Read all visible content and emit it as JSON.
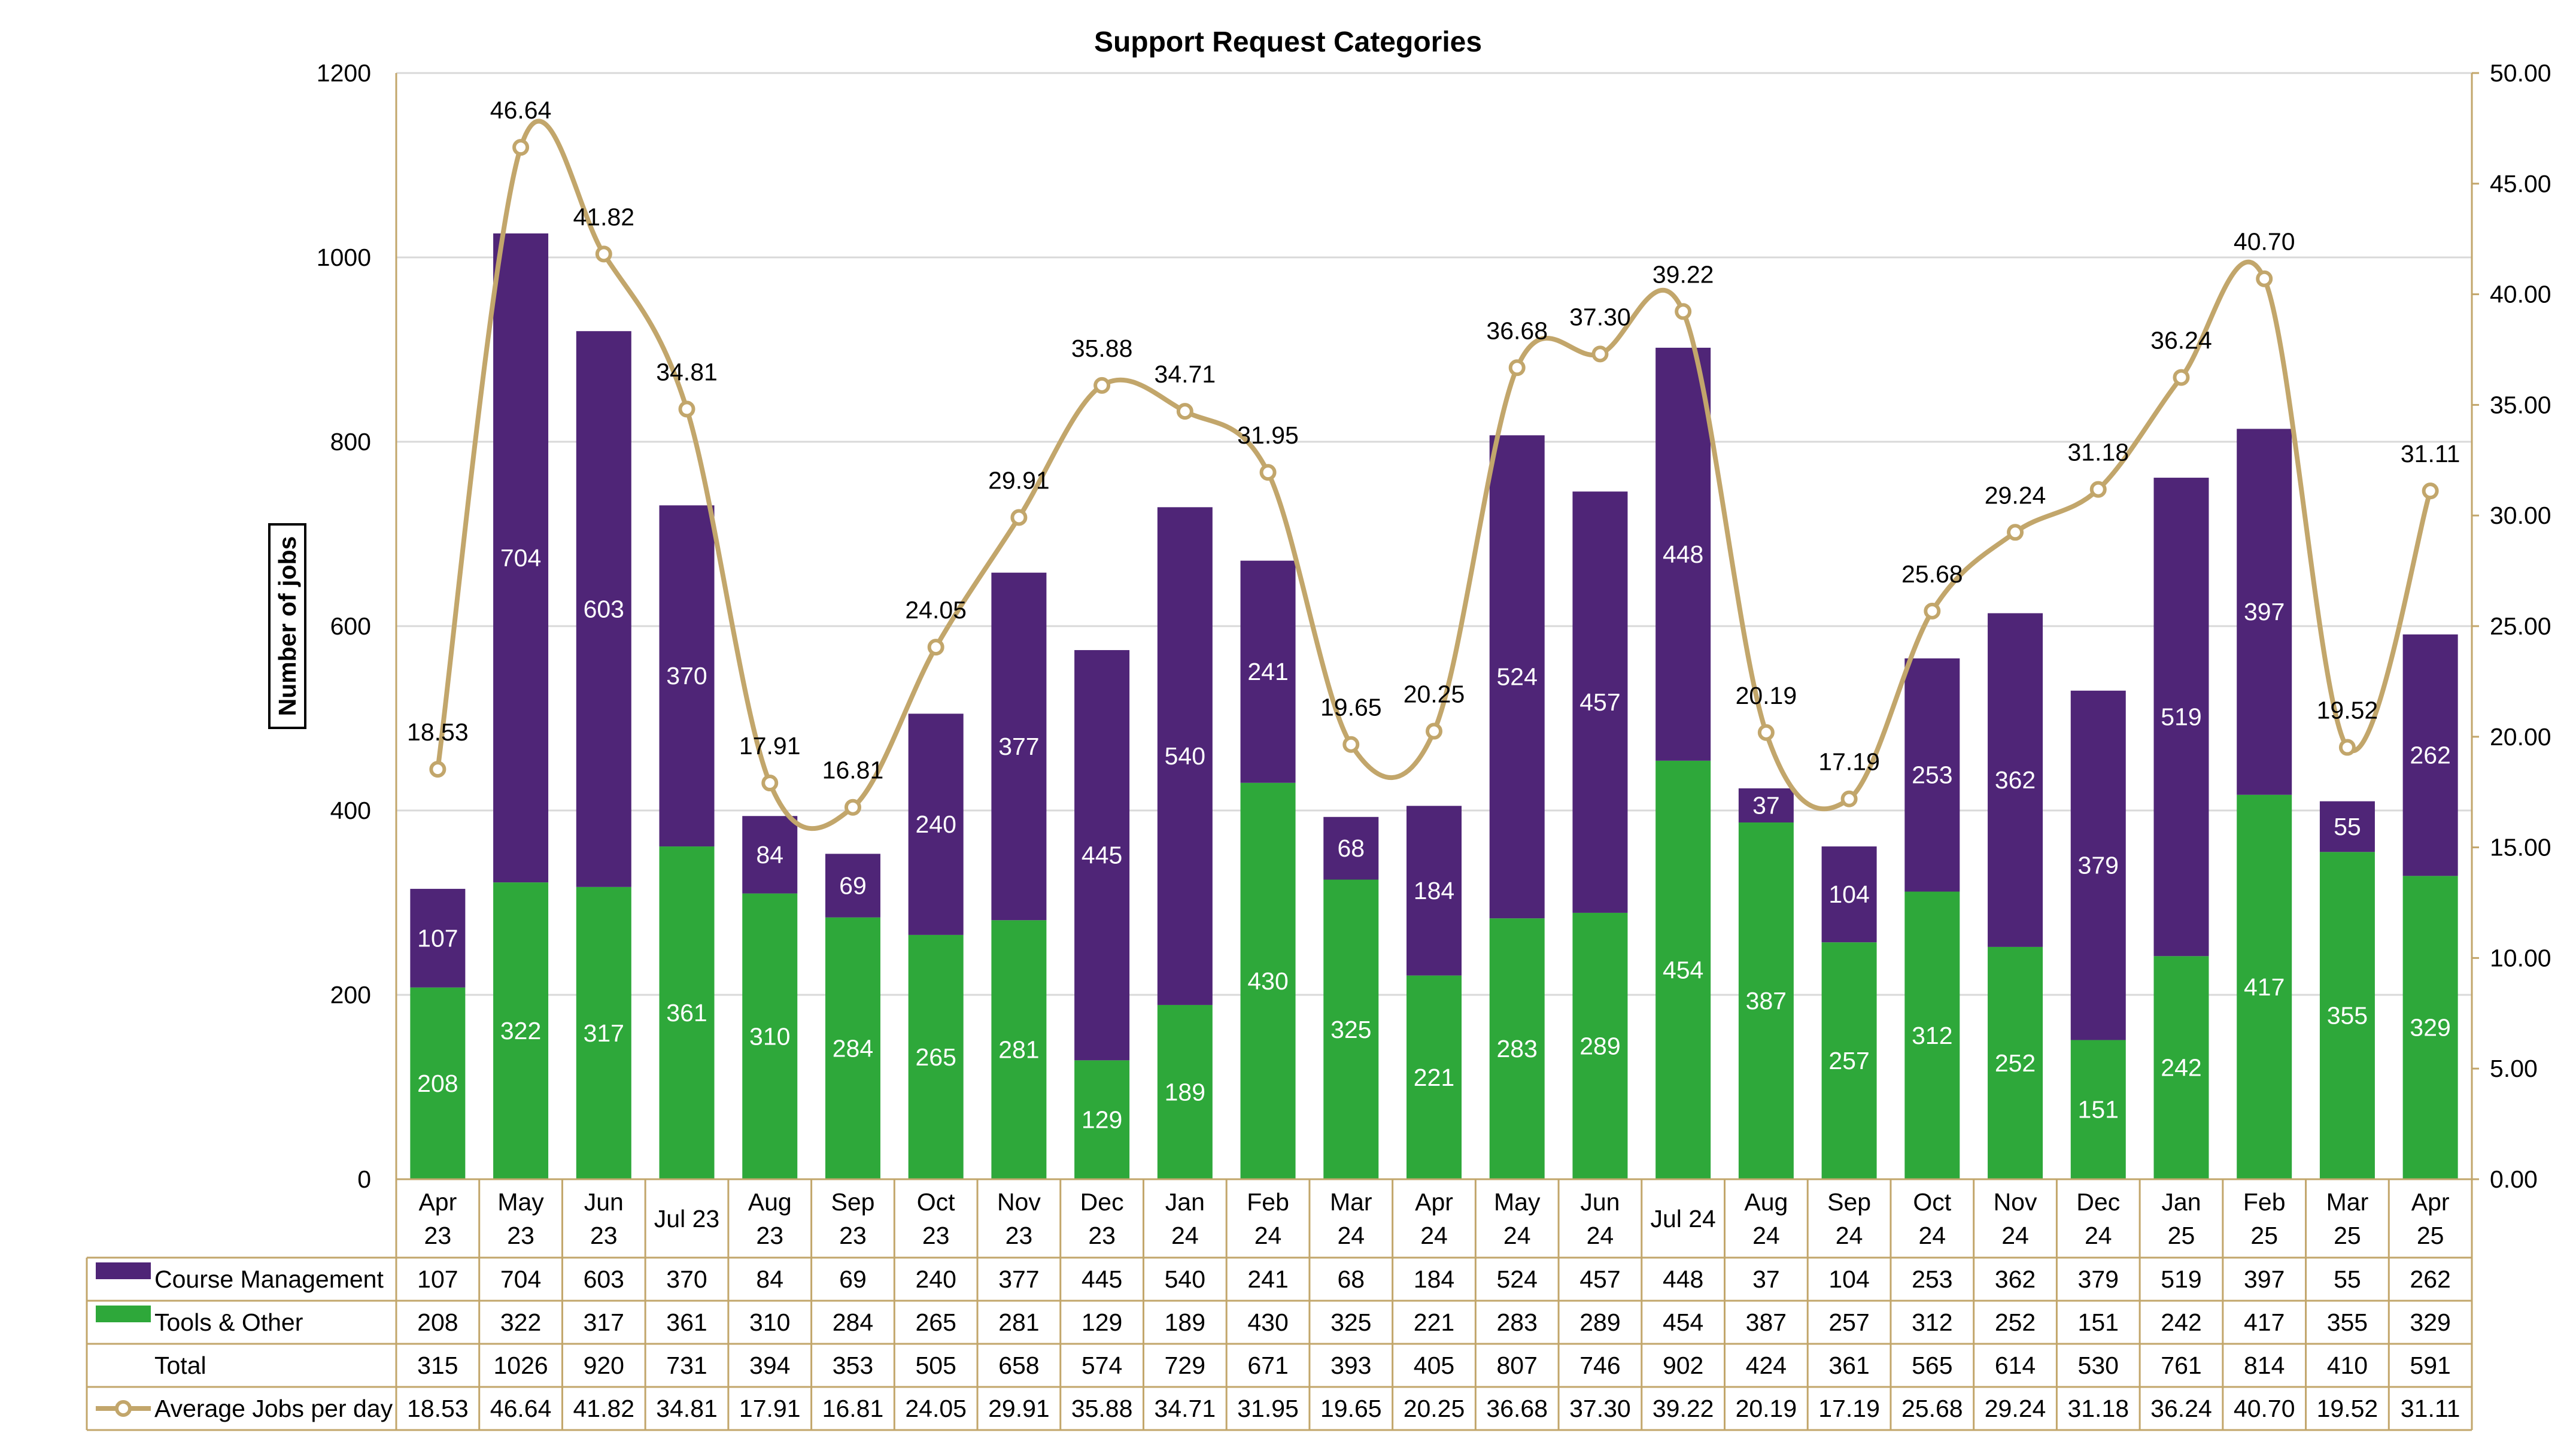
{
  "chart_data": {
    "type": "bar",
    "stacked": true,
    "title": "Support Request Categories",
    "ylabel": "Number of jobs",
    "xlabel": "",
    "ylim": [
      0,
      1200
    ],
    "y_ticks": [
      "0",
      "200",
      "400",
      "600",
      "800",
      "1000",
      "1200"
    ],
    "y2lim": [
      0,
      50
    ],
    "y2_ticks": [
      "0.00",
      "5.00",
      "10.00",
      "15.00",
      "20.00",
      "25.00",
      "30.00",
      "35.00",
      "40.00",
      "45.00",
      "50.00"
    ],
    "grid": true,
    "categories": [
      [
        "Apr",
        "23"
      ],
      [
        "May",
        "23"
      ],
      [
        "Jun",
        "23"
      ],
      [
        "Jul 23"
      ],
      [
        "Aug",
        "23"
      ],
      [
        "Sep",
        "23"
      ],
      [
        "Oct",
        "23"
      ],
      [
        "Nov",
        "23"
      ],
      [
        "Dec",
        "23"
      ],
      [
        "Jan",
        "24"
      ],
      [
        "Feb",
        "24"
      ],
      [
        "Mar",
        "24"
      ],
      [
        "Apr",
        "24"
      ],
      [
        "May",
        "24"
      ],
      [
        "Jun",
        "24"
      ],
      [
        "Jul 24"
      ],
      [
        "Aug",
        "24"
      ],
      [
        "Sep",
        "24"
      ],
      [
        "Oct",
        "24"
      ],
      [
        "Nov",
        "24"
      ],
      [
        "Dec",
        "24"
      ],
      [
        "Jan",
        "25"
      ],
      [
        "Feb",
        "25"
      ],
      [
        "Mar",
        "25"
      ],
      [
        "Apr",
        "25"
      ]
    ],
    "series": [
      {
        "name": "Course Management",
        "type": "bar",
        "color": "#4f2577",
        "values": [
          107,
          704,
          603,
          370,
          84,
          69,
          240,
          377,
          445,
          540,
          241,
          68,
          184,
          524,
          457,
          448,
          37,
          104,
          253,
          362,
          379,
          519,
          397,
          55,
          262
        ]
      },
      {
        "name": "Tools & Other",
        "type": "bar",
        "color": "#2ea83a",
        "values": [
          208,
          322,
          317,
          361,
          310,
          284,
          265,
          281,
          129,
          189,
          430,
          325,
          221,
          283,
          289,
          454,
          387,
          257,
          312,
          252,
          151,
          242,
          417,
          355,
          329
        ]
      },
      {
        "name": "Total",
        "type": "table-only",
        "values": [
          315,
          1026,
          920,
          731,
          394,
          353,
          505,
          658,
          574,
          729,
          671,
          393,
          405,
          807,
          746,
          902,
          424,
          361,
          565,
          614,
          530,
          761,
          814,
          410,
          591
        ]
      },
      {
        "name": "Average Jobs per day",
        "type": "line",
        "axis": "right",
        "color": "#c2a66b",
        "values": [
          "18.53",
          "46.64",
          "41.82",
          "34.81",
          "17.91",
          "16.81",
          "24.05",
          "29.91",
          "35.88",
          "34.71",
          "31.95",
          "19.65",
          "20.25",
          "36.68",
          "37.30",
          "39.22",
          "20.19",
          "17.19",
          "25.68",
          "29.24",
          "31.18",
          "36.24",
          "40.70",
          "19.52",
          "31.11"
        ]
      }
    ],
    "legend": "data-table-bottom"
  }
}
